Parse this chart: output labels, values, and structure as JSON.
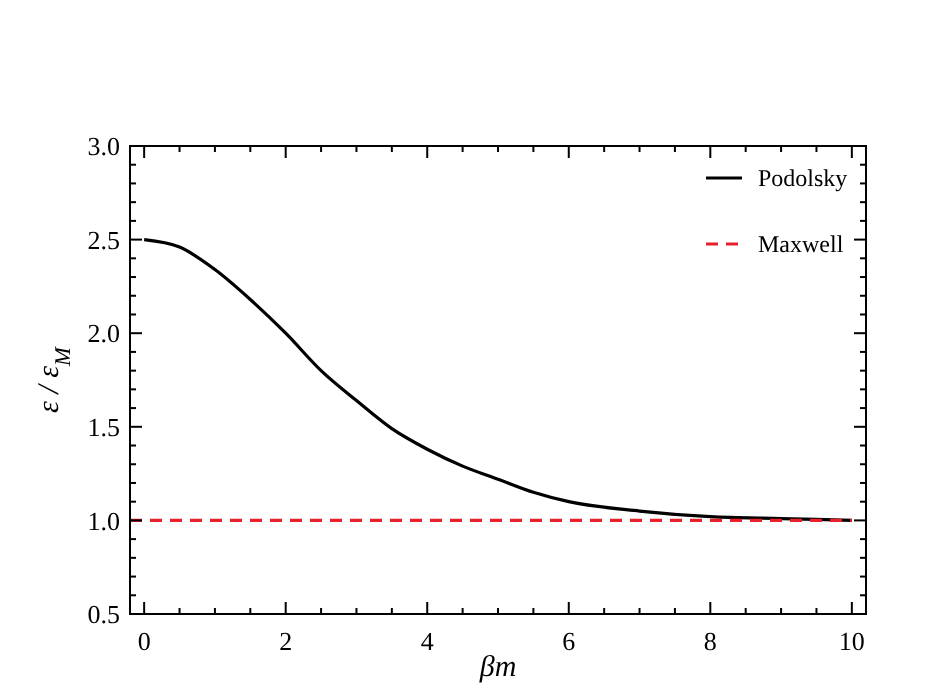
{
  "chart_data": {
    "type": "line",
    "xlabel": "βm",
    "ylabel": "ε / ε$_{M}$",
    "xlim": [
      -0.2,
      10.2
    ],
    "ylim": [
      0.5,
      3.0
    ],
    "xticks": [
      0,
      2,
      4,
      6,
      8,
      10,
      {
        "value": 0.5,
        "label": null
      },
      {
        "value": 1,
        "label": null
      },
      {
        "value": 1.5,
        "label": null
      },
      {
        "value": 2.5,
        "label": null
      },
      {
        "value": 3,
        "label": null
      },
      {
        "value": 3.5,
        "label": null
      },
      {
        "value": 4.5,
        "label": null
      },
      {
        "value": 5,
        "label": null
      },
      {
        "value": 5.5,
        "label": null
      },
      {
        "value": 6.5,
        "label": null
      },
      {
        "value": 7,
        "label": null
      },
      {
        "value": 7.5,
        "label": null
      },
      {
        "value": 8.5,
        "label": null
      },
      {
        "value": 9,
        "label": null
      },
      {
        "value": 9.5,
        "label": null
      }
    ],
    "yticks": [
      {
        "value": 0.5,
        "label": "0.5"
      },
      {
        "value": 1,
        "label": "1.0"
      },
      {
        "value": 1.5,
        "label": "1.5"
      },
      {
        "value": 2,
        "label": "2.0"
      },
      {
        "value": 2.5,
        "label": "2.5"
      },
      {
        "value": 3,
        "label": "3.0"
      },
      {
        "value": 0.6,
        "label": null
      },
      {
        "value": 0.7,
        "label": null
      },
      {
        "value": 0.8,
        "label": null
      },
      {
        "value": 0.9,
        "label": null
      },
      {
        "value": 1.1,
        "label": null
      },
      {
        "value": 1.2,
        "label": null
      },
      {
        "value": 1.3,
        "label": null
      },
      {
        "value": 1.4,
        "label": null
      },
      {
        "value": 1.6,
        "label": null
      },
      {
        "value": 1.7,
        "label": null
      },
      {
        "value": 1.8,
        "label": null
      },
      {
        "value": 1.9,
        "label": null
      },
      {
        "value": 2.1,
        "label": null
      },
      {
        "value": 2.2,
        "label": null
      },
      {
        "value": 2.3,
        "label": null
      },
      {
        "value": 2.4,
        "label": null
      },
      {
        "value": 2.6,
        "label": null
      },
      {
        "value": 2.7,
        "label": null
      },
      {
        "value": 2.8,
        "label": null
      },
      {
        "value": 2.9,
        "label": null
      }
    ],
    "grid": false,
    "legend": "top right",
    "marker": "none",
    "series": [
      {
        "name": "Podolsky",
        "color": "#000000",
        "line_style": "solid",
        "x": [
          0,
          0.5,
          1,
          1.5,
          2,
          2.5,
          3,
          3.5,
          4,
          4.5,
          5,
          5.5,
          6,
          7,
          8,
          9,
          10
        ],
        "values": [
          2.5,
          2.46,
          2.34,
          2.18,
          2.0,
          1.8,
          1.64,
          1.49,
          1.38,
          1.29,
          1.22,
          1.15,
          1.1,
          1.05,
          1.02,
          1.01,
          1.0
        ]
      },
      {
        "name": "Maxwell",
        "color": "#e8202a",
        "line_style": "dashed",
        "x": [
          -0.2,
          10
        ],
        "values": [
          1,
          1
        ]
      }
    ]
  }
}
